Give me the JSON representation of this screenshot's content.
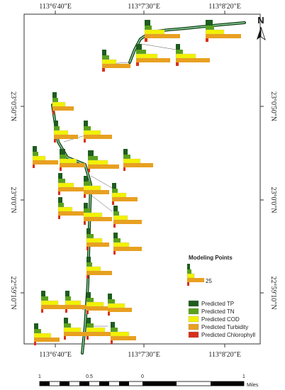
{
  "map": {
    "lon_ticks_top": [
      "113°6'40\"E",
      "113°7'30\"E",
      "113°8'20\"E"
    ],
    "lon_ticks_bottom": [
      "113°6'40\"E",
      "113°7'30\"E",
      "113°8'20\"E"
    ],
    "lat_ticks": [
      "23°0'50\"N",
      "23°0'0\"N",
      "22°59'10\"N"
    ],
    "north_label": "N"
  },
  "legend": {
    "title": "Modeling Points",
    "sample_value": "25",
    "items": [
      {
        "label": "Predicted TP",
        "color": "#1e5c1e"
      },
      {
        "label": "Predicted TN",
        "color": "#5aa01e"
      },
      {
        "label": "Predicted COD",
        "color": "#f2f200"
      },
      {
        "label": "Predicted Turbidity",
        "color": "#e8a020"
      },
      {
        "label": "Predicted Chlorophyll",
        "color": "#d8301c"
      }
    ]
  },
  "scale_bar": {
    "labels": [
      "1",
      "0.5",
      "0",
      "1"
    ],
    "unit": "Miles"
  }
}
